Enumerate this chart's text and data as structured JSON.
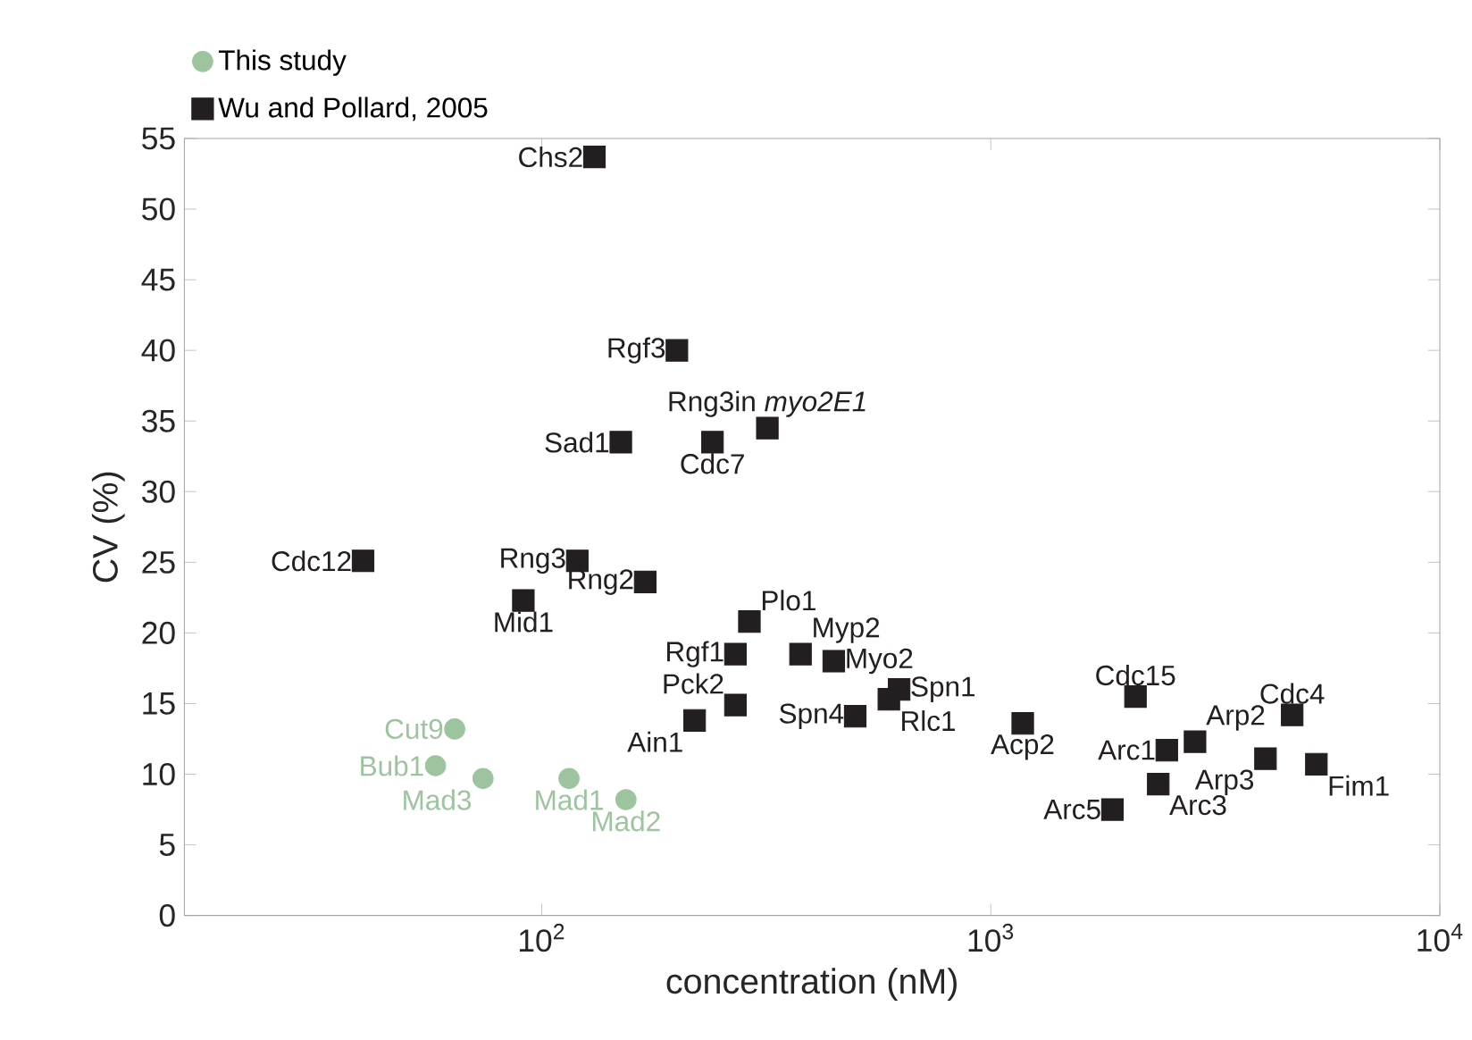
{
  "chart_data": {
    "type": "scatter",
    "xlabel": "concentration (nM)",
    "ylabel": "CV (%)",
    "log": "x",
    "xlim": [
      16,
      10000
    ],
    "ylim": [
      0,
      55
    ],
    "xticks": [
      {
        "value": 100,
        "label": "10$^{2}$"
      },
      {
        "value": 1000,
        "label": "10$^{3}$"
      },
      {
        "value": 10000,
        "label": "10$^{4}$"
      }
    ],
    "yticks": [
      0,
      5,
      10,
      15,
      20,
      25,
      30,
      35,
      40,
      45,
      50,
      55
    ],
    "grid": false,
    "legend": "top left",
    "series": [
      {
        "name": "This study",
        "color": "#9dc49f",
        "marker": "circle",
        "x": [
          64,
          58,
          74,
          115,
          154
        ],
        "values": [
          13.2,
          10.6,
          9.7,
          9.7,
          8.2
        ]
      },
      {
        "name": "Wu and Pollard, 2005",
        "color": "#231f20",
        "marker": "square",
        "x": [
          131,
          200,
          150,
          240,
          318,
          40,
          120,
          170,
          91,
          290,
          270,
          377,
          447,
          625,
          593,
          270,
          219,
          499,
          1178,
          2100,
          2466,
          2850,
          2360,
          1866,
          4090,
          4690,
          5310
        ],
        "values": [
          53.7,
          40,
          33.5,
          33.5,
          34.5,
          25.1,
          25.1,
          23.6,
          22.3,
          20.8,
          18.5,
          18.5,
          18,
          16,
          15.3,
          14.9,
          13.8,
          14.1,
          13.6,
          15.5,
          11.7,
          12.3,
          9.3,
          7.5,
          11.1,
          14.2,
          10.7
        ]
      }
    ],
    "annotations": [
      {
        "text": "Cut9",
        "x": 64,
        "y": 13.2
      },
      {
        "text": "Bub1",
        "x": 58,
        "y": 10.6
      },
      {
        "text": "Mad3",
        "x": 74,
        "y": 9.7
      },
      {
        "text": "Mad1",
        "x": 115,
        "y": 9.7
      },
      {
        "text": "Mad2",
        "x": 154,
        "y": 8.2
      },
      {
        "text": "Chs2",
        "x": 131,
        "y": 53.7
      },
      {
        "text": "Rgf3",
        "x": 200,
        "y": 40
      },
      {
        "text": "Sad1",
        "x": 150,
        "y": 33.5
      },
      {
        "text": "Cdc7",
        "x": 240,
        "y": 33.5
      },
      {
        "text": "Rng3in *myo2E1*",
        "x": 318,
        "y": 34.5
      },
      {
        "text": "Cdc12",
        "x": 40,
        "y": 25.1
      },
      {
        "text": "Rng3",
        "x": 120,
        "y": 25.1
      },
      {
        "text": "Rng2",
        "x": 170,
        "y": 23.6
      },
      {
        "text": "Mid1",
        "x": 91,
        "y": 22.3
      },
      {
        "text": "Plo1",
        "x": 290,
        "y": 20.8
      },
      {
        "text": "Rgf1",
        "x": 270,
        "y": 18.5
      },
      {
        "text": "Myp2",
        "x": 377,
        "y": 18.5
      },
      {
        "text": "Myo2",
        "x": 447,
        "y": 18
      },
      {
        "text": "Spn1",
        "x": 625,
        "y": 16
      },
      {
        "text": "Rlc1",
        "x": 593,
        "y": 15.3
      },
      {
        "text": "Pck2",
        "x": 270,
        "y": 14.9
      },
      {
        "text": "Ain1",
        "x": 219,
        "y": 13.8
      },
      {
        "text": "Spn4",
        "x": 499,
        "y": 14.1
      },
      {
        "text": "Acp2",
        "x": 1178,
        "y": 13.6
      },
      {
        "text": "Cdc15",
        "x": 2100,
        "y": 15.5
      },
      {
        "text": "Arc1",
        "x": 2466,
        "y": 11.7
      },
      {
        "text": "Arp2",
        "x": 2850,
        "y": 12.3
      },
      {
        "text": "Arc3",
        "x": 2360,
        "y": 9.3
      },
      {
        "text": "Arc5",
        "x": 1866,
        "y": 7.5
      },
      {
        "text": "Arp3",
        "x": 4090,
        "y": 11.1
      },
      {
        "text": "Cdc4",
        "x": 4690,
        "y": 14.2
      },
      {
        "text": "Fim1",
        "x": 5310,
        "y": 10.7
      }
    ]
  }
}
